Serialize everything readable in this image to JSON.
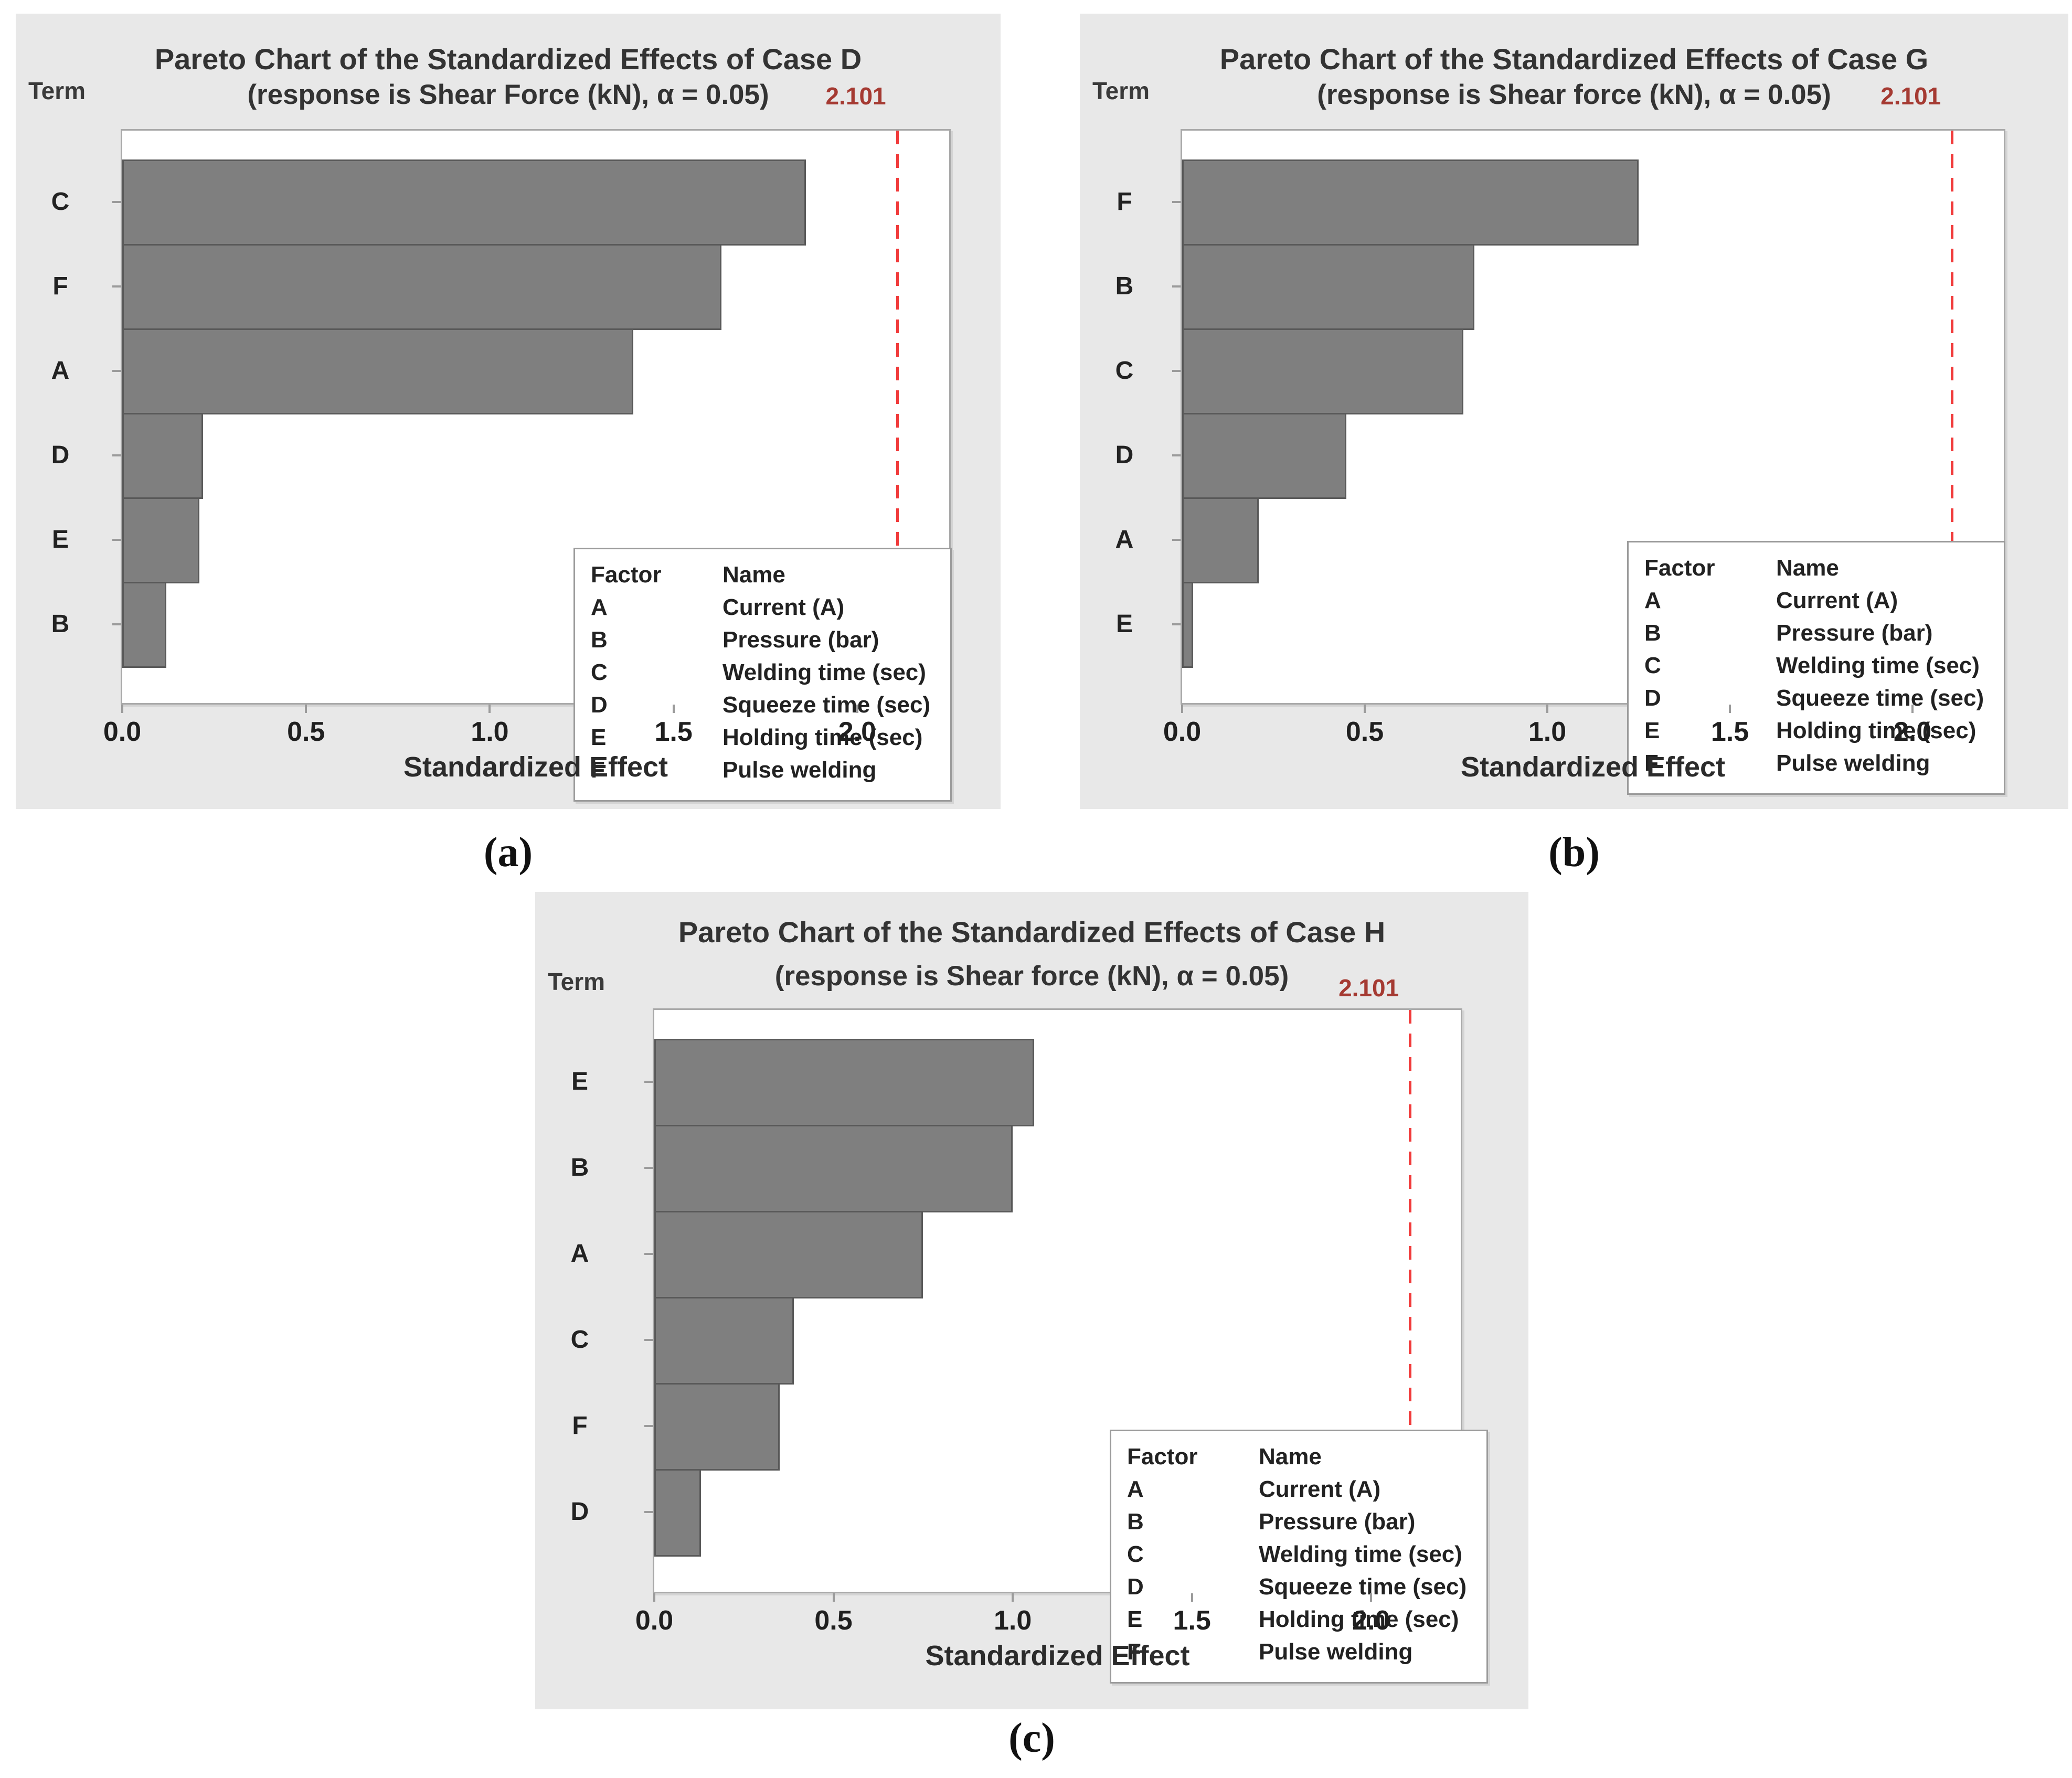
{
  "figure": {
    "captions": [
      "(a)",
      "(b)",
      "(c)"
    ]
  },
  "legend": {
    "headers": {
      "factor": "Factor",
      "name": "Name"
    },
    "rows": [
      {
        "factor": "A",
        "name": "Current (A)"
      },
      {
        "factor": "B",
        "name": "Pressure (bar)"
      },
      {
        "factor": "C",
        "name": "Welding time (sec)"
      },
      {
        "factor": "D",
        "name": "Squeeze time (sec)"
      },
      {
        "factor": "E",
        "name": "Holding time (sec)"
      },
      {
        "factor": "F",
        "name": "Pulse welding"
      }
    ]
  },
  "colors": {
    "bar_fill": "#7f7f7f",
    "bar_border": "#595959",
    "reference_line": "#f13b3b",
    "reference_label_text": "#a53a32",
    "panel_background": "#e8e8e8",
    "plot_border": "#a9a9a9"
  },
  "chart_data": [
    {
      "id": "a",
      "type": "bar",
      "orientation": "horizontal",
      "title": "Pareto Chart of the Standardized Effects of Case D",
      "subtitle": "(response is Shear Force (kN), α = 0.05)",
      "y_axis_label": "Term",
      "xlabel": "Standardized Effect",
      "reference_line_value": 2.101,
      "reference_line_label": "2.101",
      "xlim": [
        0,
        2.25
      ],
      "xticks": [
        "0.0",
        "0.5",
        "1.0",
        "1.5",
        "2.0"
      ],
      "grid": false,
      "legend_position": "inside-lower-right",
      "categories": [
        "C",
        "F",
        "A",
        "D",
        "E",
        "B"
      ],
      "values": [
        1.86,
        1.63,
        1.39,
        0.22,
        0.21,
        0.12
      ]
    },
    {
      "id": "b",
      "type": "bar",
      "orientation": "horizontal",
      "title": "Pareto Chart of the Standardized Effects of Case G",
      "subtitle": "(response is Shear force (kN), α = 0.05)",
      "y_axis_label": "Term",
      "xlabel": "Standardized Effect",
      "reference_line_value": 2.101,
      "reference_line_label": "2.101",
      "xlim": [
        0,
        2.25
      ],
      "xticks": [
        "0.0",
        "0.5",
        "1.0",
        "1.5",
        "2.0"
      ],
      "grid": false,
      "legend_position": "inside-lower-right",
      "categories": [
        "F",
        "B",
        "C",
        "D",
        "A",
        "E"
      ],
      "values": [
        1.25,
        0.8,
        0.77,
        0.45,
        0.21,
        0.03
      ]
    },
    {
      "id": "c",
      "type": "bar",
      "orientation": "horizontal",
      "title": "Pareto Chart of the Standardized Effects of Case H",
      "subtitle": "(response is Shear force (kN), α = 0.05)",
      "y_axis_label": "Term",
      "xlabel": "Standardized Effect",
      "reference_line_value": 2.101,
      "reference_line_label": "2.101",
      "xlim": [
        0,
        2.25
      ],
      "xticks": [
        "0.0",
        "0.5",
        "1.0",
        "1.5",
        "2.0"
      ],
      "grid": false,
      "legend_position": "inside-lower-right",
      "categories": [
        "E",
        "B",
        "A",
        "C",
        "F",
        "D"
      ],
      "values": [
        1.06,
        1.0,
        0.75,
        0.39,
        0.35,
        0.13
      ]
    }
  ]
}
